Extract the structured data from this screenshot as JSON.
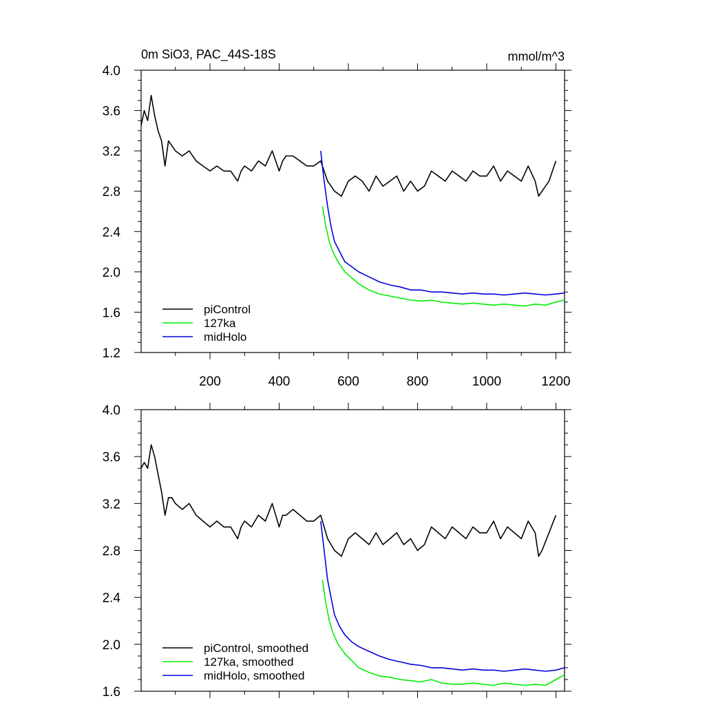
{
  "chart_data": [
    {
      "type": "line",
      "title": "0m SiO3, PAC_44S-18S",
      "units": "mmol/m^3",
      "xlim": [
        1,
        1225
      ],
      "ylim": [
        1.2,
        4.0
      ],
      "x_ticks": [
        200,
        400,
        600,
        800,
        1000,
        1200
      ],
      "x_tick_labels": [
        "200",
        "400",
        "600",
        "800",
        "1000",
        "1200"
      ],
      "y_ticks": [
        1.2,
        1.6,
        2.0,
        2.4,
        2.8,
        3.2,
        3.6,
        4.0
      ],
      "y_tick_labels": [
        "1.2",
        "1.6",
        "2.0",
        "2.4",
        "2.8",
        "3.2",
        "3.6",
        "4.0"
      ],
      "grid": false,
      "legend_position": "bottom-left",
      "series": [
        {
          "name": "piControl",
          "color": "#000000",
          "x": [
            1,
            10,
            20,
            30,
            40,
            50,
            60,
            70,
            80,
            90,
            100,
            120,
            140,
            160,
            180,
            200,
            220,
            240,
            260,
            280,
            290,
            300,
            320,
            340,
            360,
            380,
            400,
            410,
            420,
            440,
            460,
            480,
            500,
            520,
            530,
            540,
            560,
            580,
            600,
            620,
            640,
            660,
            680,
            700,
            720,
            740,
            760,
            780,
            800,
            820,
            840,
            860,
            880,
            900,
            920,
            940,
            960,
            980,
            1000,
            1020,
            1040,
            1060,
            1080,
            1100,
            1120,
            1140,
            1150,
            1160,
            1180,
            1200
          ],
          "y": [
            3.45,
            3.6,
            3.5,
            3.75,
            3.55,
            3.4,
            3.3,
            3.05,
            3.3,
            3.25,
            3.2,
            3.15,
            3.2,
            3.1,
            3.05,
            3.0,
            3.05,
            3.0,
            3.0,
            2.9,
            3.0,
            3.05,
            3.0,
            3.1,
            3.05,
            3.2,
            3.0,
            3.1,
            3.15,
            3.15,
            3.1,
            3.05,
            3.05,
            3.1,
            3.0,
            2.9,
            2.8,
            2.75,
            2.9,
            2.95,
            2.9,
            2.8,
            2.95,
            2.85,
            2.9,
            2.95,
            2.8,
            2.9,
            2.8,
            2.85,
            3.0,
            2.95,
            2.9,
            3.0,
            2.95,
            2.9,
            3.0,
            2.95,
            2.95,
            3.05,
            2.9,
            3.0,
            2.95,
            2.9,
            3.05,
            2.9,
            2.75,
            2.8,
            2.9,
            3.1
          ]
        },
        {
          "name": "127ka",
          "color": "#00ee00",
          "x": [
            525,
            535,
            545,
            555,
            570,
            590,
            610,
            630,
            660,
            690,
            720,
            750,
            780,
            810,
            840,
            870,
            900,
            930,
            960,
            990,
            1020,
            1050,
            1080,
            1110,
            1140,
            1170,
            1200,
            1225
          ],
          "y": [
            2.65,
            2.45,
            2.3,
            2.2,
            2.1,
            2.0,
            1.94,
            1.88,
            1.82,
            1.78,
            1.76,
            1.74,
            1.72,
            1.71,
            1.72,
            1.7,
            1.69,
            1.68,
            1.69,
            1.68,
            1.67,
            1.68,
            1.67,
            1.66,
            1.68,
            1.67,
            1.7,
            1.72
          ]
        },
        {
          "name": "midHolo",
          "color": "#0000dd",
          "x": [
            520,
            530,
            540,
            550,
            560,
            575,
            590,
            610,
            630,
            660,
            690,
            720,
            750,
            780,
            810,
            840,
            870,
            900,
            930,
            960,
            990,
            1020,
            1050,
            1080,
            1110,
            1140,
            1170,
            1200,
            1225
          ],
          "y": [
            3.2,
            2.9,
            2.65,
            2.45,
            2.3,
            2.2,
            2.1,
            2.05,
            2.0,
            1.95,
            1.9,
            1.87,
            1.85,
            1.82,
            1.82,
            1.8,
            1.8,
            1.79,
            1.78,
            1.79,
            1.78,
            1.78,
            1.77,
            1.78,
            1.79,
            1.78,
            1.77,
            1.78,
            1.79
          ]
        }
      ]
    },
    {
      "type": "line",
      "xlim": [
        1,
        1225
      ],
      "ylim": [
        1.6,
        4.0
      ],
      "y_ticks": [
        1.6,
        2.0,
        2.4,
        2.8,
        3.2,
        3.6,
        4.0
      ],
      "y_tick_labels": [
        "1.6",
        "2.0",
        "2.4",
        "2.8",
        "3.2",
        "3.6",
        "4.0"
      ],
      "grid": false,
      "legend_position": "bottom-left",
      "series": [
        {
          "name": "piControl, smoothed",
          "color": "#000000",
          "x": [
            1,
            10,
            20,
            30,
            40,
            50,
            60,
            70,
            80,
            90,
            100,
            120,
            140,
            160,
            180,
            200,
            220,
            240,
            260,
            280,
            290,
            300,
            320,
            340,
            360,
            380,
            400,
            410,
            420,
            440,
            460,
            480,
            500,
            520,
            530,
            540,
            560,
            580,
            600,
            620,
            640,
            660,
            680,
            700,
            720,
            740,
            760,
            780,
            800,
            820,
            840,
            860,
            880,
            900,
            920,
            940,
            960,
            980,
            1000,
            1020,
            1040,
            1060,
            1080,
            1100,
            1120,
            1140,
            1150,
            1160,
            1180,
            1200
          ],
          "y": [
            3.5,
            3.55,
            3.5,
            3.7,
            3.6,
            3.45,
            3.3,
            3.1,
            3.25,
            3.25,
            3.2,
            3.15,
            3.2,
            3.1,
            3.05,
            3.0,
            3.05,
            3.0,
            3.0,
            2.9,
            3.0,
            3.05,
            3.0,
            3.1,
            3.05,
            3.2,
            3.0,
            3.1,
            3.1,
            3.15,
            3.1,
            3.05,
            3.05,
            3.1,
            3.0,
            2.9,
            2.8,
            2.75,
            2.9,
            2.95,
            2.9,
            2.85,
            2.95,
            2.85,
            2.9,
            2.95,
            2.85,
            2.9,
            2.8,
            2.85,
            3.0,
            2.95,
            2.9,
            3.0,
            2.95,
            2.9,
            3.0,
            2.95,
            2.95,
            3.05,
            2.9,
            3.0,
            2.95,
            2.9,
            3.05,
            2.95,
            2.75,
            2.8,
            2.95,
            3.1
          ]
        },
        {
          "name": "127ka, smoothed",
          "color": "#00ee00",
          "x": [
            525,
            535,
            545,
            555,
            570,
            590,
            610,
            630,
            660,
            690,
            720,
            750,
            780,
            810,
            840,
            870,
            900,
            930,
            960,
            990,
            1020,
            1050,
            1080,
            1110,
            1140,
            1170,
            1200,
            1225
          ],
          "y": [
            2.55,
            2.35,
            2.2,
            2.1,
            2.0,
            1.92,
            1.86,
            1.8,
            1.76,
            1.73,
            1.72,
            1.7,
            1.69,
            1.68,
            1.7,
            1.67,
            1.66,
            1.66,
            1.67,
            1.66,
            1.65,
            1.67,
            1.66,
            1.65,
            1.66,
            1.65,
            1.7,
            1.74
          ]
        },
        {
          "name": "midHolo, smoothed",
          "color": "#0000dd",
          "x": [
            520,
            530,
            540,
            550,
            560,
            575,
            590,
            610,
            630,
            660,
            690,
            720,
            750,
            780,
            810,
            840,
            870,
            900,
            930,
            960,
            990,
            1020,
            1050,
            1080,
            1110,
            1140,
            1170,
            1200,
            1225
          ],
          "y": [
            3.05,
            2.8,
            2.55,
            2.4,
            2.25,
            2.15,
            2.08,
            2.02,
            1.98,
            1.94,
            1.9,
            1.87,
            1.85,
            1.83,
            1.82,
            1.8,
            1.8,
            1.79,
            1.78,
            1.79,
            1.78,
            1.78,
            1.77,
            1.78,
            1.79,
            1.78,
            1.77,
            1.78,
            1.8
          ]
        }
      ]
    }
  ]
}
